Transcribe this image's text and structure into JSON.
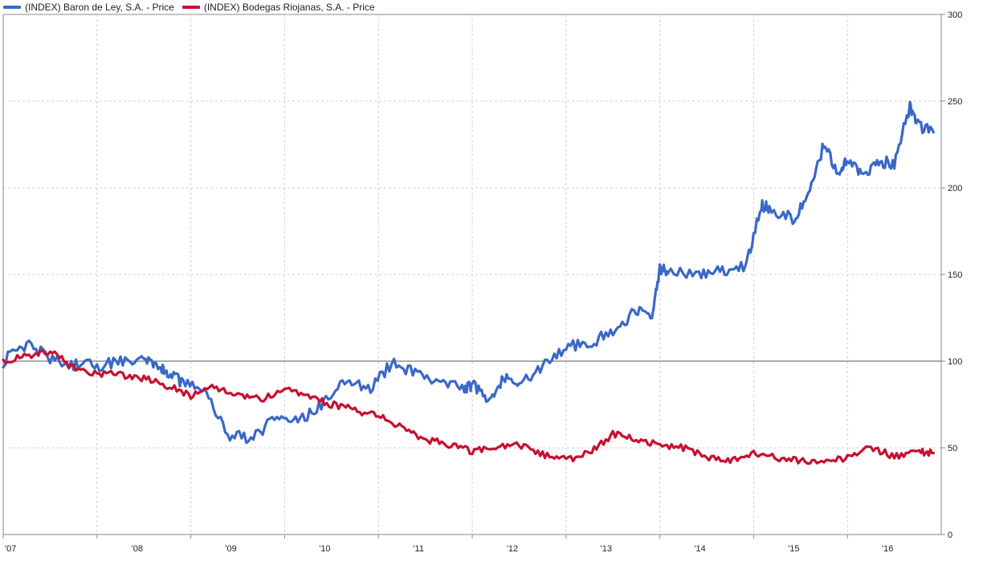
{
  "chart_data": {
    "type": "line",
    "title": "",
    "xlabel": "",
    "ylabel": "",
    "x_ticks": [
      "'07",
      "'08",
      "'09",
      "'10",
      "'11",
      "'12",
      "'13",
      "'14",
      "'15",
      "'16"
    ],
    "y_ticks": [
      0,
      50,
      100,
      150,
      200,
      250,
      300
    ],
    "ylim": [
      0,
      300
    ],
    "xlim": [
      "2007-01",
      "2016-12"
    ],
    "baseline": 100,
    "grid": true,
    "legend_position": "top-left",
    "y_axis_side": "right",
    "series": [
      {
        "name": "(INDEX) Baron de Ley, S.A. - Price",
        "color": "#3a68c8",
        "x": [
          "2007-01",
          "2007-04",
          "2007-07",
          "2007-10",
          "2008-01",
          "2008-04",
          "2008-07",
          "2008-09",
          "2008-10",
          "2008-12",
          "2009-03",
          "2009-06",
          "2009-09",
          "2009-12",
          "2010-03",
          "2010-06",
          "2010-09",
          "2010-12",
          "2011-03",
          "2011-06",
          "2011-09",
          "2011-12",
          "2012-01",
          "2012-03",
          "2012-05",
          "2012-07",
          "2012-10",
          "2013-01",
          "2013-04",
          "2013-07",
          "2013-10",
          "2013-12",
          "2014-01",
          "2014-02",
          "2014-06",
          "2014-09",
          "2014-12",
          "2015-02",
          "2015-03",
          "2015-06",
          "2015-08",
          "2015-10",
          "2015-12",
          "2016-01",
          "2016-03",
          "2016-05",
          "2016-07",
          "2016-09",
          "2016-10",
          "2016-12"
        ],
        "values": [
          100,
          110,
          102,
          98,
          97,
          100,
          102,
          97,
          92,
          88,
          80,
          57,
          55,
          70,
          66,
          76,
          90,
          84,
          100,
          92,
          88,
          85,
          86,
          78,
          90,
          86,
          96,
          109,
          110,
          118,
          129,
          124,
          153,
          152,
          150,
          152,
          155,
          190,
          188,
          182,
          195,
          225,
          206,
          218,
          207,
          215,
          214,
          247,
          236,
          232
        ]
      },
      {
        "name": "(INDEX) Bodegas Riojanas, S.A. - Price",
        "color": "#c8102e",
        "x": [
          "2007-01",
          "2007-04",
          "2007-07",
          "2007-10",
          "2008-01",
          "2008-04",
          "2008-07",
          "2008-10",
          "2009-01",
          "2009-04",
          "2009-07",
          "2009-10",
          "2010-01",
          "2010-04",
          "2010-07",
          "2010-10",
          "2011-01",
          "2011-04",
          "2011-07",
          "2011-10",
          "2012-01",
          "2012-04",
          "2012-07",
          "2012-10",
          "2013-01",
          "2013-04",
          "2013-07",
          "2013-10",
          "2014-01",
          "2014-04",
          "2014-07",
          "2014-10",
          "2015-01",
          "2015-04",
          "2015-07",
          "2015-10",
          "2016-01",
          "2016-04",
          "2016-07",
          "2016-10",
          "2016-12"
        ],
        "values": [
          100,
          103,
          106,
          96,
          93,
          92,
          90,
          86,
          80,
          85,
          80,
          78,
          84,
          80,
          75,
          72,
          68,
          62,
          55,
          52,
          48,
          50,
          52,
          46,
          43,
          47,
          58,
          55,
          52,
          50,
          45,
          43,
          47,
          44,
          43,
          42,
          44,
          50,
          45,
          48,
          47
        ]
      }
    ]
  }
}
